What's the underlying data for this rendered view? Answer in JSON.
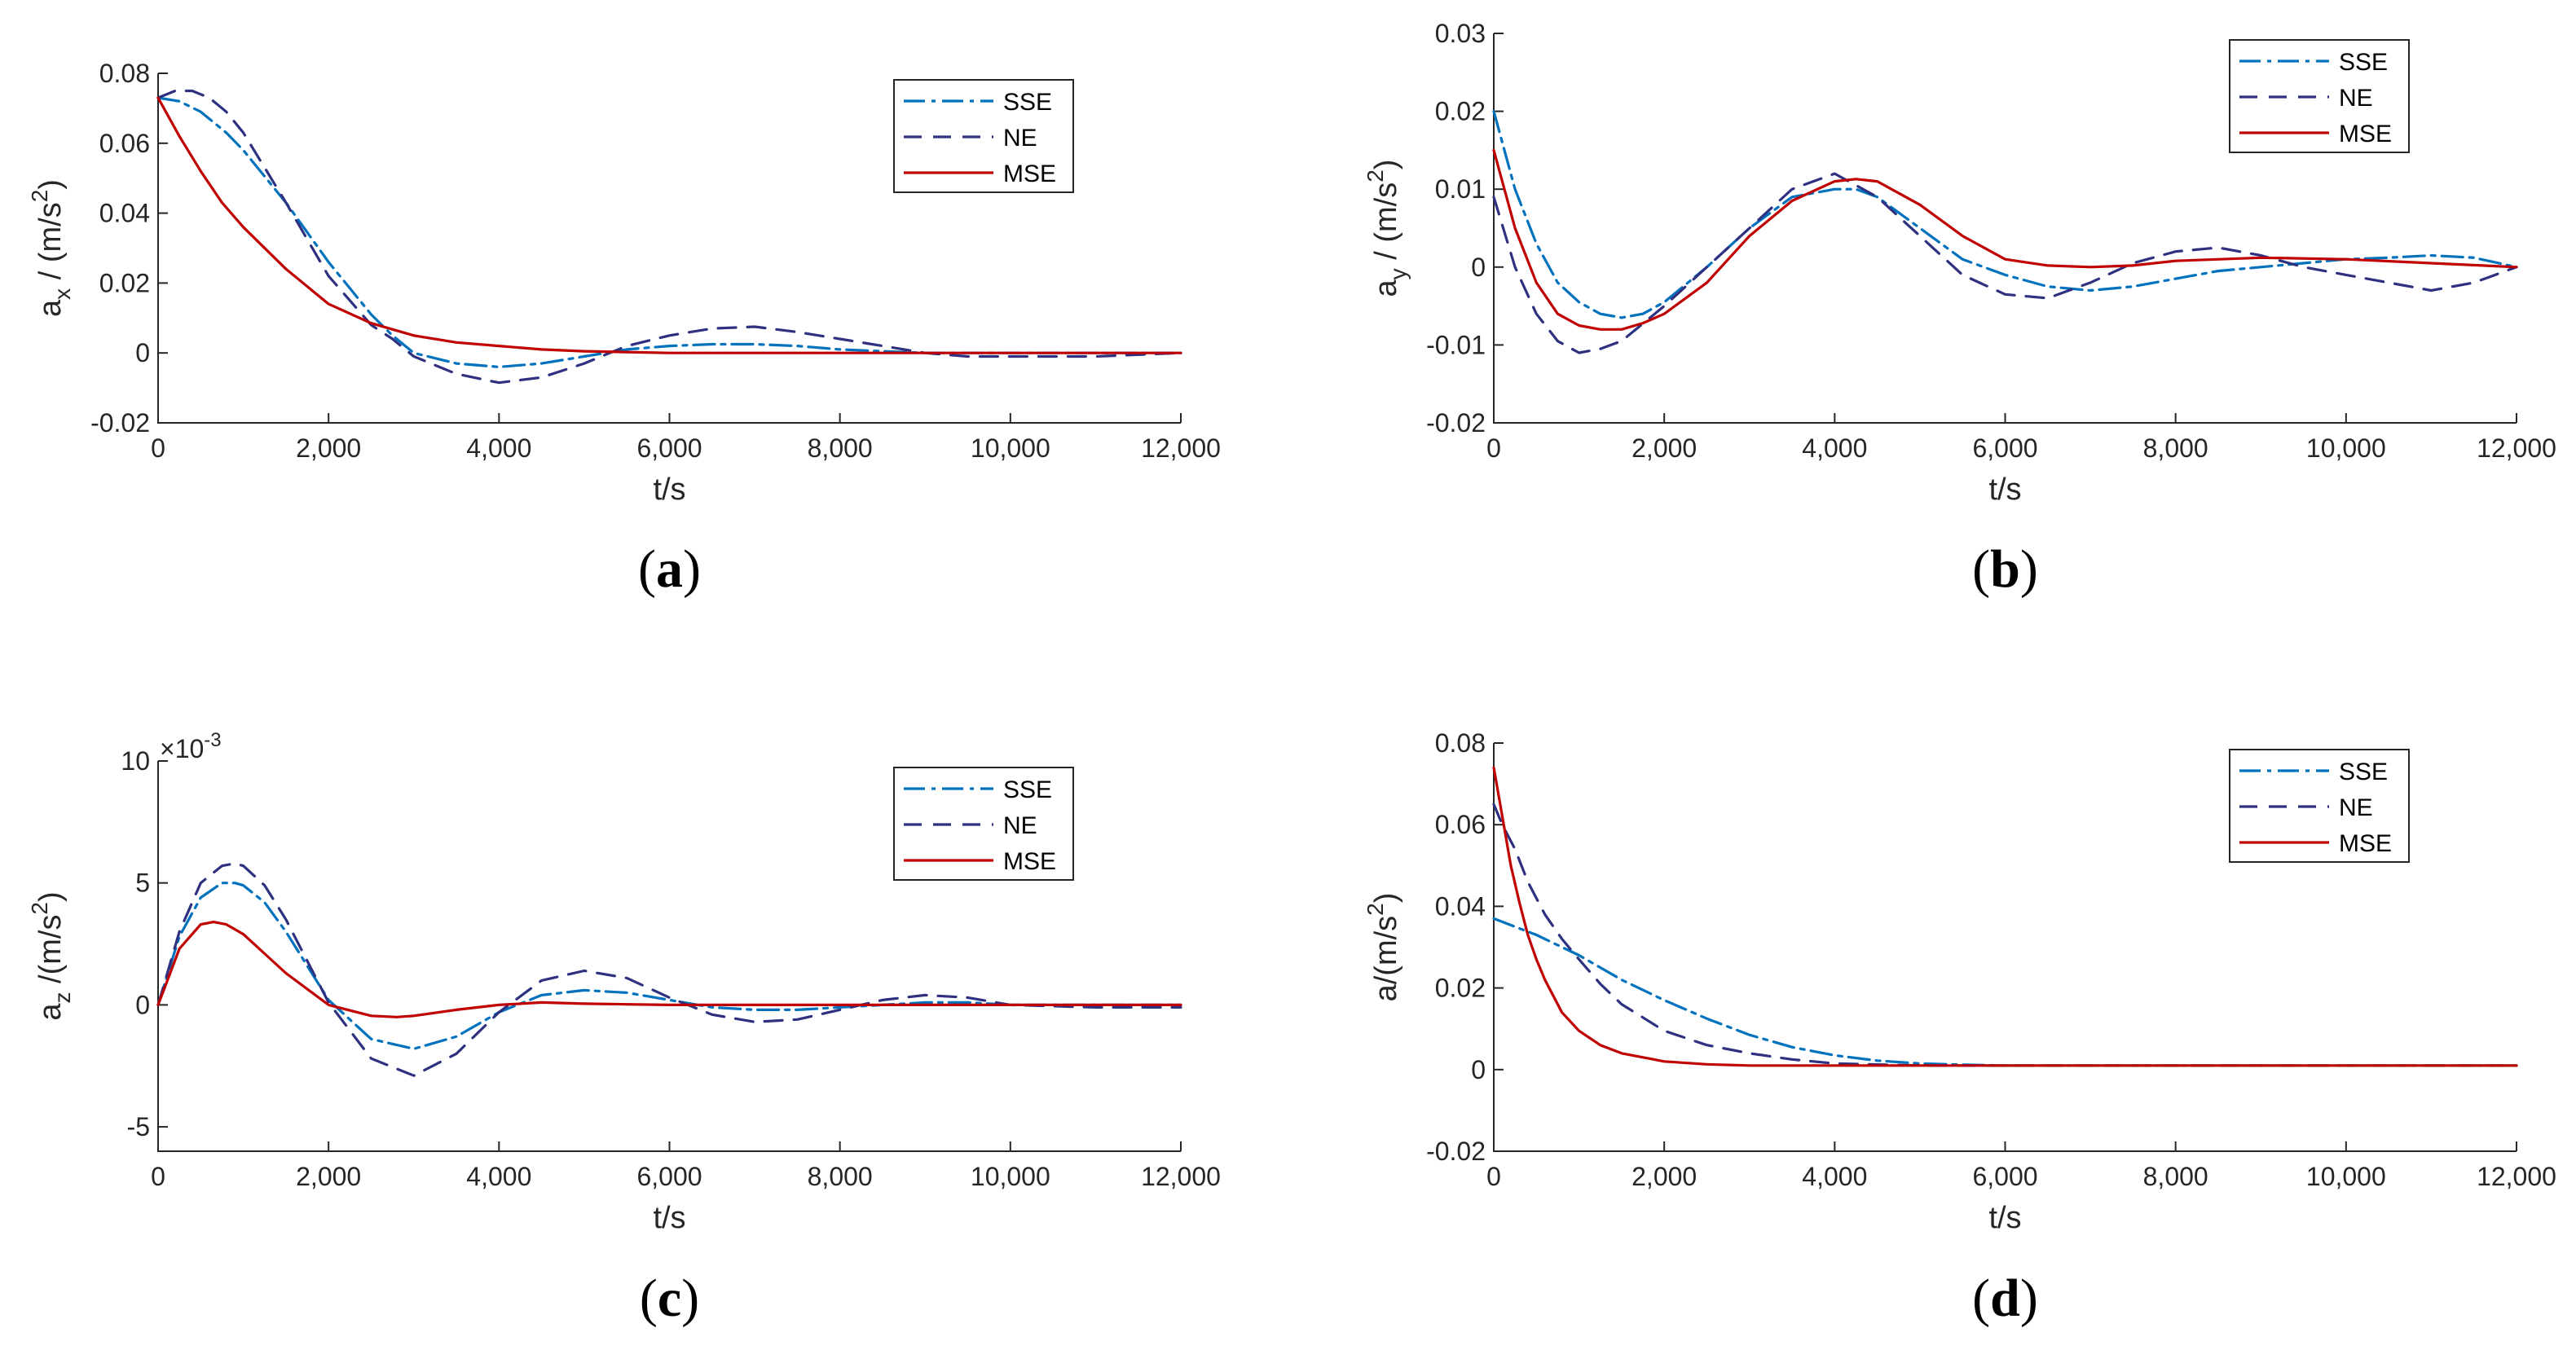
{
  "colors": {
    "SSE": "#0072bd",
    "NE": "#2e3180",
    "MSE": "#c00000",
    "axis": "#262626"
  },
  "legend_labels": [
    "SSE",
    "NE",
    "MSE"
  ],
  "chart_data": [
    {
      "type": "line",
      "panel": "a",
      "caption": "a",
      "xlabel": "t/s",
      "ylabel": {
        "base": "a",
        "sub": "x",
        "rest": " / (m/s",
        "sup": "2",
        "close": ")"
      },
      "xlim": [
        0,
        12000
      ],
      "ylim": [
        -0.02,
        0.08
      ],
      "xticks": [
        0,
        2000,
        4000,
        6000,
        8000,
        10000,
        12000
      ],
      "xticklabels": [
        "0",
        "2,000",
        "4,000",
        "6,000",
        "8,000",
        "10,000",
        "12,000"
      ],
      "yticks": [
        -0.02,
        0,
        0.02,
        0.04,
        0.06,
        0.08
      ],
      "yticklabels": [
        "-0.02",
        "0",
        "0.02",
        "0.04",
        "0.06",
        "0.08"
      ],
      "legend": "top-right",
      "series": [
        {
          "name": "SSE",
          "x": [
            0,
            250,
            500,
            800,
            1000,
            1500,
            2000,
            2500,
            2750,
            3000,
            3500,
            4000,
            4500,
            5000,
            5500,
            6000,
            6500,
            7000,
            7500,
            8000,
            8500,
            9000,
            10000,
            11000,
            12000
          ],
          "y": [
            0.073,
            0.072,
            0.069,
            0.063,
            0.058,
            0.043,
            0.026,
            0.011,
            0.005,
            0.0,
            -0.003,
            -0.004,
            -0.003,
            -0.001,
            0.001,
            0.002,
            0.0025,
            0.0025,
            0.002,
            0.001,
            0.0005,
            0.0,
            0.0,
            0.0,
            0.0
          ]
        },
        {
          "name": "NE",
          "x": [
            0,
            200,
            400,
            600,
            800,
            1000,
            1500,
            2000,
            2500,
            2750,
            3000,
            3500,
            4000,
            4500,
            5000,
            5500,
            6000,
            6500,
            7000,
            7500,
            8000,
            8500,
            9000,
            9500,
            10000,
            11000,
            12000
          ],
          "y": [
            0.073,
            0.075,
            0.075,
            0.073,
            0.069,
            0.063,
            0.043,
            0.022,
            0.008,
            0.004,
            -0.001,
            -0.006,
            -0.0085,
            -0.007,
            -0.003,
            0.002,
            0.005,
            0.007,
            0.0075,
            0.006,
            0.004,
            0.002,
            0.0,
            -0.001,
            -0.001,
            -0.001,
            0.0
          ]
        },
        {
          "name": "MSE",
          "x": [
            0,
            250,
            500,
            750,
            1000,
            1500,
            2000,
            2500,
            3000,
            3500,
            4000,
            4500,
            5000,
            6000,
            8000,
            10000,
            12000
          ],
          "y": [
            0.073,
            0.062,
            0.052,
            0.043,
            0.036,
            0.024,
            0.014,
            0.0085,
            0.005,
            0.003,
            0.002,
            0.001,
            0.0005,
            0.0,
            0.0,
            0.0,
            0.0
          ]
        }
      ]
    },
    {
      "type": "line",
      "panel": "b",
      "caption": "b",
      "xlabel": "t/s",
      "ylabel": {
        "base": "a",
        "sub": "y",
        "rest": " / (m/s",
        "sup": "2",
        "close": ")"
      },
      "xlim": [
        0,
        12000
      ],
      "ylim": [
        -0.02,
        0.03
      ],
      "xticks": [
        0,
        2000,
        4000,
        6000,
        8000,
        10000,
        12000
      ],
      "xticklabels": [
        "0",
        "2,000",
        "4,000",
        "6,000",
        "8,000",
        "10,000",
        "12,000"
      ],
      "yticks": [
        -0.02,
        -0.01,
        0,
        0.01,
        0.02,
        0.03
      ],
      "yticklabels": [
        "-0.02",
        "-0.01",
        "0",
        "0.01",
        "0.02",
        "0.03"
      ],
      "legend": "top-right",
      "series": [
        {
          "name": "SSE",
          "x": [
            0,
            250,
            500,
            750,
            1000,
            1250,
            1500,
            1750,
            2000,
            2500,
            3000,
            3500,
            4000,
            4250,
            4500,
            5000,
            5500,
            6000,
            6500,
            7000,
            7500,
            8000,
            8500,
            9000,
            9500,
            10000,
            10500,
            11000,
            11500,
            12000
          ],
          "y": [
            0.02,
            0.01,
            0.003,
            -0.002,
            -0.0045,
            -0.006,
            -0.0065,
            -0.006,
            -0.0045,
            0.0,
            0.005,
            0.009,
            0.01,
            0.01,
            0.009,
            0.005,
            0.001,
            -0.001,
            -0.0025,
            -0.003,
            -0.0025,
            -0.0015,
            -0.0005,
            0.0,
            0.0005,
            0.001,
            0.0012,
            0.0015,
            0.0012,
            0.0
          ]
        },
        {
          "name": "NE",
          "x": [
            0,
            250,
            500,
            750,
            1000,
            1250,
            1500,
            2000,
            2500,
            3000,
            3500,
            4000,
            4500,
            5000,
            5500,
            6000,
            6500,
            7000,
            7500,
            8000,
            8500,
            9000,
            9500,
            10000,
            10500,
            11000,
            11500,
            12000
          ],
          "y": [
            0.009,
            0.0,
            -0.006,
            -0.0095,
            -0.011,
            -0.0105,
            -0.0095,
            -0.005,
            0.0,
            0.005,
            0.01,
            0.012,
            0.009,
            0.004,
            -0.001,
            -0.0035,
            -0.004,
            -0.002,
            0.0005,
            0.002,
            0.0025,
            0.0015,
            0.0,
            -0.001,
            -0.002,
            -0.003,
            -0.002,
            0.0
          ]
        },
        {
          "name": "MSE",
          "x": [
            0,
            250,
            500,
            750,
            1000,
            1250,
            1500,
            1750,
            2000,
            2500,
            3000,
            3500,
            4000,
            4250,
            4500,
            5000,
            5500,
            6000,
            6500,
            7000,
            7500,
            8000,
            9000,
            10000,
            11000,
            12000
          ],
          "y": [
            0.015,
            0.005,
            -0.002,
            -0.006,
            -0.0075,
            -0.008,
            -0.008,
            -0.0072,
            -0.006,
            -0.002,
            0.004,
            0.0085,
            0.011,
            0.0113,
            0.011,
            0.008,
            0.004,
            0.001,
            0.0002,
            0.0,
            0.0002,
            0.0008,
            0.0012,
            0.001,
            0.0005,
            0.0
          ]
        }
      ]
    },
    {
      "type": "line",
      "panel": "c",
      "caption": "c",
      "xlabel": "t/s",
      "ylabel": {
        "base": "a",
        "sub": "z",
        "rest": " /(m/s",
        "sup": "2",
        "close": ")"
      },
      "exponent_label": {
        "times": "×10",
        "power": "-3"
      },
      "xlim": [
        0,
        12000
      ],
      "ylim": [
        -6,
        10
      ],
      "xticks": [
        0,
        2000,
        4000,
        6000,
        8000,
        10000,
        12000
      ],
      "xticklabels": [
        "0",
        "2,000",
        "4,000",
        "6,000",
        "8,000",
        "10,000",
        "12,000"
      ],
      "yticks": [
        -5,
        0,
        5,
        10
      ],
      "yticklabels": [
        "-5",
        "0",
        "5",
        "10"
      ],
      "legend": "top-right",
      "series": [
        {
          "name": "SSE",
          "x": [
            0,
            250,
            500,
            750,
            900,
            1000,
            1250,
            1500,
            2000,
            2500,
            3000,
            3500,
            4000,
            4500,
            5000,
            5500,
            6000,
            6500,
            7000,
            7500,
            8000,
            8500,
            9000,
            9500,
            10000,
            11000,
            12000
          ],
          "y": [
            0,
            2.8,
            4.4,
            5.0,
            5.0,
            4.9,
            4.2,
            3.0,
            0.2,
            -1.4,
            -1.8,
            -1.3,
            -0.3,
            0.4,
            0.6,
            0.5,
            0.2,
            -0.1,
            -0.2,
            -0.2,
            -0.1,
            0.0,
            0.1,
            0.1,
            0.0,
            0.0,
            0.0
          ]
        },
        {
          "name": "NE",
          "x": [
            0,
            250,
            500,
            750,
            900,
            1000,
            1250,
            1500,
            2000,
            2500,
            3000,
            3500,
            4000,
            4500,
            5000,
            5500,
            6000,
            6500,
            7000,
            7500,
            8000,
            8500,
            9000,
            9500,
            10000,
            11000,
            12000
          ],
          "y": [
            0,
            3.0,
            5.0,
            5.7,
            5.8,
            5.7,
            4.9,
            3.5,
            0.1,
            -2.2,
            -2.9,
            -2.0,
            -0.3,
            1.0,
            1.4,
            1.1,
            0.3,
            -0.4,
            -0.7,
            -0.6,
            -0.2,
            0.2,
            0.4,
            0.3,
            0.0,
            -0.1,
            -0.1
          ]
        },
        {
          "name": "MSE",
          "x": [
            0,
            250,
            500,
            650,
            800,
            1000,
            1250,
            1500,
            2000,
            2500,
            2800,
            3000,
            3500,
            4000,
            4500,
            5000,
            6000,
            8000,
            10000,
            12000
          ],
          "y": [
            0,
            2.3,
            3.3,
            3.4,
            3.3,
            2.9,
            2.1,
            1.3,
            0.0,
            -0.45,
            -0.5,
            -0.45,
            -0.2,
            0.0,
            0.1,
            0.05,
            0.0,
            0.0,
            0.0,
            0.0
          ]
        }
      ]
    },
    {
      "type": "line",
      "panel": "d",
      "caption": "d",
      "xlabel": "t/s",
      "ylabel": {
        "base": "a",
        "sub": "",
        "rest": "/(m/s",
        "sup": "2",
        "close": ")"
      },
      "xlim": [
        0,
        12000
      ],
      "ylim": [
        -0.02,
        0.08
      ],
      "xticks": [
        0,
        2000,
        4000,
        6000,
        8000,
        10000,
        12000
      ],
      "xticklabels": [
        "0",
        "2,000",
        "4,000",
        "6,000",
        "8,000",
        "10,000",
        "12,000"
      ],
      "yticks": [
        -0.02,
        0,
        0.02,
        0.04,
        0.06,
        0.08
      ],
      "yticklabels": [
        "-0.02",
        "0",
        "0.02",
        "0.04",
        "0.06",
        "0.08"
      ],
      "legend": "top-right",
      "series": [
        {
          "name": "SSE",
          "x": [
            0,
            500,
            1000,
            1500,
            2000,
            2500,
            3000,
            3500,
            4000,
            4500,
            5000,
            5500,
            6000,
            7000,
            8000,
            10000,
            12000
          ],
          "y": [
            0.037,
            0.033,
            0.028,
            0.022,
            0.017,
            0.0125,
            0.0085,
            0.0055,
            0.0035,
            0.0022,
            0.0015,
            0.0012,
            0.001,
            0.001,
            0.001,
            0.001,
            0.001
          ]
        },
        {
          "name": "NE",
          "x": [
            0,
            100,
            250,
            400,
            600,
            800,
            1000,
            1250,
            1500,
            2000,
            2500,
            3000,
            3500,
            4000,
            5000,
            6000,
            8000,
            10000,
            12000
          ],
          "y": [
            0.065,
            0.06,
            0.054,
            0.046,
            0.038,
            0.032,
            0.027,
            0.021,
            0.016,
            0.0095,
            0.006,
            0.004,
            0.0025,
            0.0015,
            0.001,
            0.001,
            0.001,
            0.001,
            0.001
          ]
        },
        {
          "name": "MSE",
          "x": [
            0,
            100,
            200,
            300,
            400,
            500,
            600,
            800,
            1000,
            1250,
            1500,
            2000,
            2500,
            3000,
            4000,
            6000,
            8000,
            10000,
            12000
          ],
          "y": [
            0.074,
            0.062,
            0.05,
            0.041,
            0.033,
            0.027,
            0.022,
            0.014,
            0.0095,
            0.006,
            0.004,
            0.002,
            0.0013,
            0.001,
            0.001,
            0.001,
            0.001,
            0.001,
            0.001
          ]
        }
      ]
    }
  ]
}
